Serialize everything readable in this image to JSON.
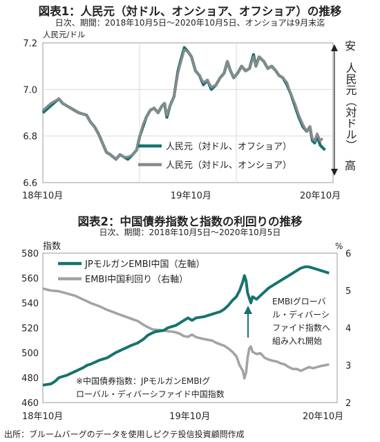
{
  "chart_data": [
    {
      "type": "line",
      "title": "図表1：人民元（対ドル、オンショア、オフショア）の推移",
      "subtitle": "日次、期間：2018年10月5日～2020年10月5日、オンショアは9月末迄",
      "ylabel": "人民元/ドル",
      "ylim": [
        6.6,
        7.2
      ],
      "yticks": [
        "7.2",
        "7.0",
        "6.8",
        "6.6"
      ],
      "xticks": [
        "18年10月",
        "19年10月",
        "20年10月"
      ],
      "grid": true,
      "legend_position": "lower-right",
      "right_annotation": {
        "top": "安",
        "middle": "人民元（対ドル）",
        "bottom": "高"
      },
      "series": [
        {
          "name": "人民元（対ドル、オフショア）",
          "color": "#16736f",
          "points": [
            [
              0,
              6.9
            ],
            [
              10,
              6.93
            ],
            [
              20,
              6.96
            ],
            [
              25,
              6.94
            ],
            [
              35,
              6.92
            ],
            [
              45,
              6.9
            ],
            [
              55,
              6.89
            ],
            [
              60,
              6.86
            ],
            [
              65,
              6.84
            ],
            [
              70,
              6.81
            ],
            [
              75,
              6.77
            ],
            [
              80,
              6.73
            ],
            [
              85,
              6.72
            ],
            [
              92,
              6.7
            ],
            [
              97,
              6.72
            ],
            [
              102,
              6.71
            ],
            [
              107,
              6.7
            ],
            [
              113,
              6.72
            ],
            [
              118,
              6.74
            ],
            [
              122,
              6.8
            ],
            [
              126,
              6.84
            ],
            [
              130,
              6.88
            ],
            [
              135,
              6.91
            ],
            [
              140,
              6.92
            ],
            [
              145,
              6.9
            ],
            [
              150,
              6.93
            ],
            [
              153,
              6.94
            ],
            [
              156,
              6.88
            ],
            [
              160,
              6.93
            ],
            [
              165,
              6.97
            ],
            [
              170,
              7.08
            ],
            [
              173,
              7.12
            ],
            [
              178,
              7.18
            ],
            [
              183,
              7.16
            ],
            [
              187,
              7.14
            ],
            [
              192,
              7.08
            ],
            [
              197,
              7.06
            ],
            [
              202,
              7.02
            ],
            [
              207,
              7.04
            ],
            [
              212,
              7.0
            ],
            [
              218,
              7.02
            ],
            [
              223,
              7.05
            ],
            [
              228,
              7.07
            ],
            [
              232,
              7.12
            ],
            [
              236,
              7.08
            ],
            [
              240,
              7.05
            ],
            [
              245,
              7.07
            ],
            [
              250,
              7.1
            ],
            [
              255,
              7.08
            ],
            [
              260,
              7.09
            ],
            [
              265,
              7.15
            ],
            [
              268,
              7.1
            ],
            [
              272,
              7.14
            ],
            [
              278,
              7.12
            ],
            [
              283,
              7.09
            ],
            [
              288,
              7.1
            ],
            [
              293,
              7.08
            ],
            [
              297,
              7.06
            ],
            [
              302,
              7.05
            ],
            [
              307,
              7.02
            ],
            [
              312,
              6.98
            ],
            [
              317,
              6.93
            ],
            [
              322,
              6.88
            ],
            [
              327,
              6.84
            ],
            [
              332,
              6.82
            ],
            [
              336,
              6.84
            ],
            [
              339,
              6.78
            ],
            [
              342,
              6.77
            ],
            [
              345,
              6.8
            ],
            [
              349,
              6.76
            ],
            [
              352,
              6.75
            ],
            [
              355,
              6.74
            ]
          ]
        },
        {
          "name": "人民元（対ドル、オンショア）",
          "color": "#8a8a8a",
          "points": [
            [
              0,
              6.91
            ],
            [
              10,
              6.94
            ],
            [
              20,
              6.96
            ],
            [
              25,
              6.94
            ],
            [
              35,
              6.92
            ],
            [
              45,
              6.9
            ],
            [
              55,
              6.89
            ],
            [
              60,
              6.86
            ],
            [
              65,
              6.84
            ],
            [
              70,
              6.81
            ],
            [
              75,
              6.77
            ],
            [
              80,
              6.73
            ],
            [
              85,
              6.72
            ],
            [
              92,
              6.7
            ],
            [
              97,
              6.72
            ],
            [
              102,
              6.71
            ],
            [
              107,
              6.71
            ],
            [
              113,
              6.72
            ],
            [
              118,
              6.74
            ],
            [
              122,
              6.8
            ],
            [
              126,
              6.85
            ],
            [
              130,
              6.88
            ],
            [
              135,
              6.91
            ],
            [
              140,
              6.92
            ],
            [
              145,
              6.9
            ],
            [
              150,
              6.93
            ],
            [
              153,
              6.94
            ],
            [
              156,
              6.89
            ],
            [
              160,
              6.93
            ],
            [
              165,
              6.97
            ],
            [
              170,
              7.07
            ],
            [
              173,
              7.11
            ],
            [
              178,
              7.17
            ],
            [
              183,
              7.16
            ],
            [
              187,
              7.14
            ],
            [
              192,
              7.08
            ],
            [
              197,
              7.06
            ],
            [
              202,
              7.03
            ],
            [
              207,
              7.04
            ],
            [
              212,
              7.01
            ],
            [
              218,
              7.02
            ],
            [
              223,
              7.05
            ],
            [
              228,
              7.07
            ],
            [
              232,
              7.12
            ],
            [
              236,
              7.08
            ],
            [
              240,
              7.05
            ],
            [
              245,
              7.07
            ],
            [
              250,
              7.1
            ],
            [
              255,
              7.08
            ],
            [
              260,
              7.09
            ],
            [
              265,
              7.14
            ],
            [
              268,
              7.1
            ],
            [
              272,
              7.14
            ],
            [
              278,
              7.12
            ],
            [
              283,
              7.09
            ],
            [
              288,
              7.1
            ],
            [
              293,
              7.08
            ],
            [
              297,
              7.06
            ],
            [
              302,
              7.05
            ],
            [
              307,
              7.03
            ],
            [
              312,
              6.98
            ],
            [
              317,
              6.94
            ],
            [
              322,
              6.89
            ],
            [
              327,
              6.85
            ],
            [
              332,
              6.82
            ],
            [
              336,
              6.84
            ],
            [
              339,
              6.79
            ],
            [
              342,
              6.78
            ],
            [
              345,
              6.81
            ],
            [
              349,
              6.78
            ],
            [
              352,
              6.79
            ]
          ]
        }
      ]
    },
    {
      "type": "line",
      "title": "図表2：中国債券指数と指数の利回りの推移",
      "subtitle": "日次、期間：2018年10月5日～2020年10月5日",
      "ylabel_left": "指数",
      "ylabel_right": "%",
      "ylim_left": [
        460,
        580
      ],
      "ylim_right": [
        2,
        6
      ],
      "yticks_left": [
        "580",
        "560",
        "540",
        "520",
        "500",
        "480",
        "460"
      ],
      "yticks_right": [
        "6",
        "5",
        "4",
        "3",
        "2"
      ],
      "xticks": [
        "18年10月",
        "19年10月",
        "20年10月"
      ],
      "grid": false,
      "legend_position": "top-left",
      "annotation": "EMBIグローバル・ディバーシファイド指数へ組み入れ開始",
      "annotation_lines": [
        "EMBIグローバ",
        "ル・ディバーシ",
        "ファイド指数へ",
        "組み入れ開始"
      ],
      "note": "※中国債券指数：JPモルガンEMBIグローバル・ディバーシファイド中国指数",
      "note_lines": [
        "※中国債券指数：JPモルガンEMBIグ",
        "ローバル・ディバーシファイド中国指数"
      ],
      "series": [
        {
          "name": "JPモルガンEMBI中国（左軸）",
          "color": "#16736f",
          "axis": "left",
          "points": [
            [
              0,
              474
            ],
            [
              10,
              475
            ],
            [
              15,
              477
            ],
            [
              20,
              480
            ],
            [
              30,
              482
            ],
            [
              40,
              485
            ],
            [
              50,
              488
            ],
            [
              55,
              490
            ],
            [
              60,
              491
            ],
            [
              70,
              494
            ],
            [
              80,
              496
            ],
            [
              90,
              500
            ],
            [
              100,
              503
            ],
            [
              110,
              506
            ],
            [
              118,
              508
            ],
            [
              125,
              511
            ],
            [
              130,
              514
            ],
            [
              136,
              516
            ],
            [
              140,
              517
            ],
            [
              150,
              518
            ],
            [
              155,
              520
            ],
            [
              160,
              521
            ],
            [
              165,
              522
            ],
            [
              170,
              524
            ],
            [
              175,
              526
            ],
            [
              180,
              528
            ],
            [
              185,
              526
            ],
            [
              190,
              528
            ],
            [
              200,
              529
            ],
            [
              210,
              531
            ],
            [
              215,
              532
            ],
            [
              220,
              533
            ],
            [
              225,
              535
            ],
            [
              230,
              538
            ],
            [
              235,
              542
            ],
            [
              240,
              545
            ],
            [
              244,
              550
            ],
            [
              248,
              557
            ],
            [
              250,
              562
            ],
            [
              252,
              558
            ],
            [
              254,
              548
            ],
            [
              256,
              544
            ],
            [
              258,
              540
            ],
            [
              260,
              545
            ],
            [
              265,
              543
            ],
            [
              270,
              546
            ],
            [
              275,
              549
            ],
            [
              280,
              552
            ],
            [
              285,
              554
            ],
            [
              290,
              556
            ],
            [
              295,
              558
            ],
            [
              300,
              560
            ],
            [
              305,
              562
            ],
            [
              310,
              564
            ],
            [
              315,
              566
            ],
            [
              320,
              568
            ],
            [
              325,
              569
            ],
            [
              330,
              569
            ],
            [
              335,
              568
            ],
            [
              340,
              567
            ],
            [
              345,
              566
            ],
            [
              350,
              565
            ],
            [
              355,
              564
            ]
          ]
        },
        {
          "name": "EMBI中国利回り（右軸）",
          "color": "#a3a3a3",
          "axis": "right",
          "points": [
            [
              0,
              5.05
            ],
            [
              10,
              5.0
            ],
            [
              20,
              4.98
            ],
            [
              30,
              4.92
            ],
            [
              40,
              4.86
            ],
            [
              50,
              4.76
            ],
            [
              60,
              4.66
            ],
            [
              70,
              4.58
            ],
            [
              80,
              4.48
            ],
            [
              90,
              4.4
            ],
            [
              100,
              4.32
            ],
            [
              110,
              4.24
            ],
            [
              118,
              4.18
            ],
            [
              125,
              4.08
            ],
            [
              130,
              4.02
            ],
            [
              136,
              3.96
            ],
            [
              140,
              3.95
            ],
            [
              150,
              3.93
            ],
            [
              155,
              3.91
            ],
            [
              160,
              3.9
            ],
            [
              165,
              3.88
            ],
            [
              170,
              3.84
            ],
            [
              175,
              3.78
            ],
            [
              180,
              3.76
            ],
            [
              185,
              3.82
            ],
            [
              190,
              3.75
            ],
            [
              200,
              3.7
            ],
            [
              210,
              3.66
            ],
            [
              215,
              3.6
            ],
            [
              220,
              3.56
            ],
            [
              225,
              3.52
            ],
            [
              230,
              3.45
            ],
            [
              235,
              3.36
            ],
            [
              240,
              3.24
            ],
            [
              244,
              3.0
            ],
            [
              248,
              2.85
            ],
            [
              250,
              2.65
            ],
            [
              252,
              2.8
            ],
            [
              254,
              3.2
            ],
            [
              256,
              3.45
            ],
            [
              258,
              3.5
            ],
            [
              260,
              3.36
            ],
            [
              265,
              3.3
            ],
            [
              270,
              3.32
            ],
            [
              275,
              3.2
            ],
            [
              280,
              3.15
            ],
            [
              285,
              3.12
            ],
            [
              290,
              3.1
            ],
            [
              295,
              3.05
            ],
            [
              300,
              3.02
            ],
            [
              305,
              2.95
            ],
            [
              310,
              2.9
            ],
            [
              315,
              2.9
            ],
            [
              320,
              2.85
            ],
            [
              325,
              2.9
            ],
            [
              330,
              2.95
            ],
            [
              335,
              2.92
            ],
            [
              340,
              2.95
            ],
            [
              345,
              2.98
            ],
            [
              350,
              3.0
            ],
            [
              355,
              3.02
            ]
          ]
        }
      ]
    }
  ],
  "source": "出所：ブルームバーグのデータを使用しピクテ投信投資顧問作成"
}
